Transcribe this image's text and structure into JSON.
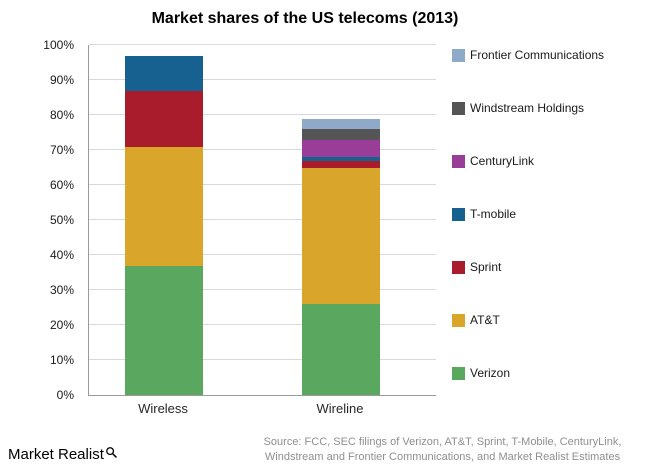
{
  "title": "Market shares of the US telecoms (2013)",
  "footer": {
    "logo": "Market Realist",
    "source_line1": "Source: FCC, SEC filings of Verizon, AT&T, Sprint, T-Mobile,  CenturyLink,",
    "source_line2": "Windstream and Frontier Communications, and Market Realist Estimates"
  },
  "chart_data": {
    "type": "bar",
    "stacked": true,
    "title": "Market shares of the US telecoms (2013)",
    "categories": [
      "Wireless",
      "Wireline"
    ],
    "series": [
      {
        "name": "Verizon",
        "color": "#5aa860",
        "values": [
          37,
          26
        ]
      },
      {
        "name": "AT&T",
        "color": "#d9a62b",
        "values": [
          34,
          39
        ]
      },
      {
        "name": "Sprint",
        "color": "#a81c2c",
        "values": [
          16,
          2
        ]
      },
      {
        "name": "T-mobile",
        "color": "#16618f",
        "values": [
          10,
          1
        ]
      },
      {
        "name": "CenturyLink",
        "color": "#993d99",
        "values": [
          0,
          5
        ]
      },
      {
        "name": "Windstream Holdings",
        "color": "#555555",
        "values": [
          0,
          3
        ]
      },
      {
        "name": "Frontier Communications",
        "color": "#8fa9c9",
        "values": [
          0,
          3
        ]
      }
    ],
    "ylim": [
      0,
      100
    ],
    "ytick_step": 10,
    "ytick_labels": [
      "0%",
      "10%",
      "20%",
      "30%",
      "40%",
      "50%",
      "60%",
      "70%",
      "80%",
      "90%",
      "100%"
    ],
    "xlabel": "",
    "ylabel": "",
    "grid": true,
    "legend_position": "right",
    "legend_order": [
      "Frontier Communications",
      "Windstream Holdings",
      "CenturyLink",
      "T-mobile",
      "Sprint",
      "AT&T",
      "Verizon"
    ]
  }
}
